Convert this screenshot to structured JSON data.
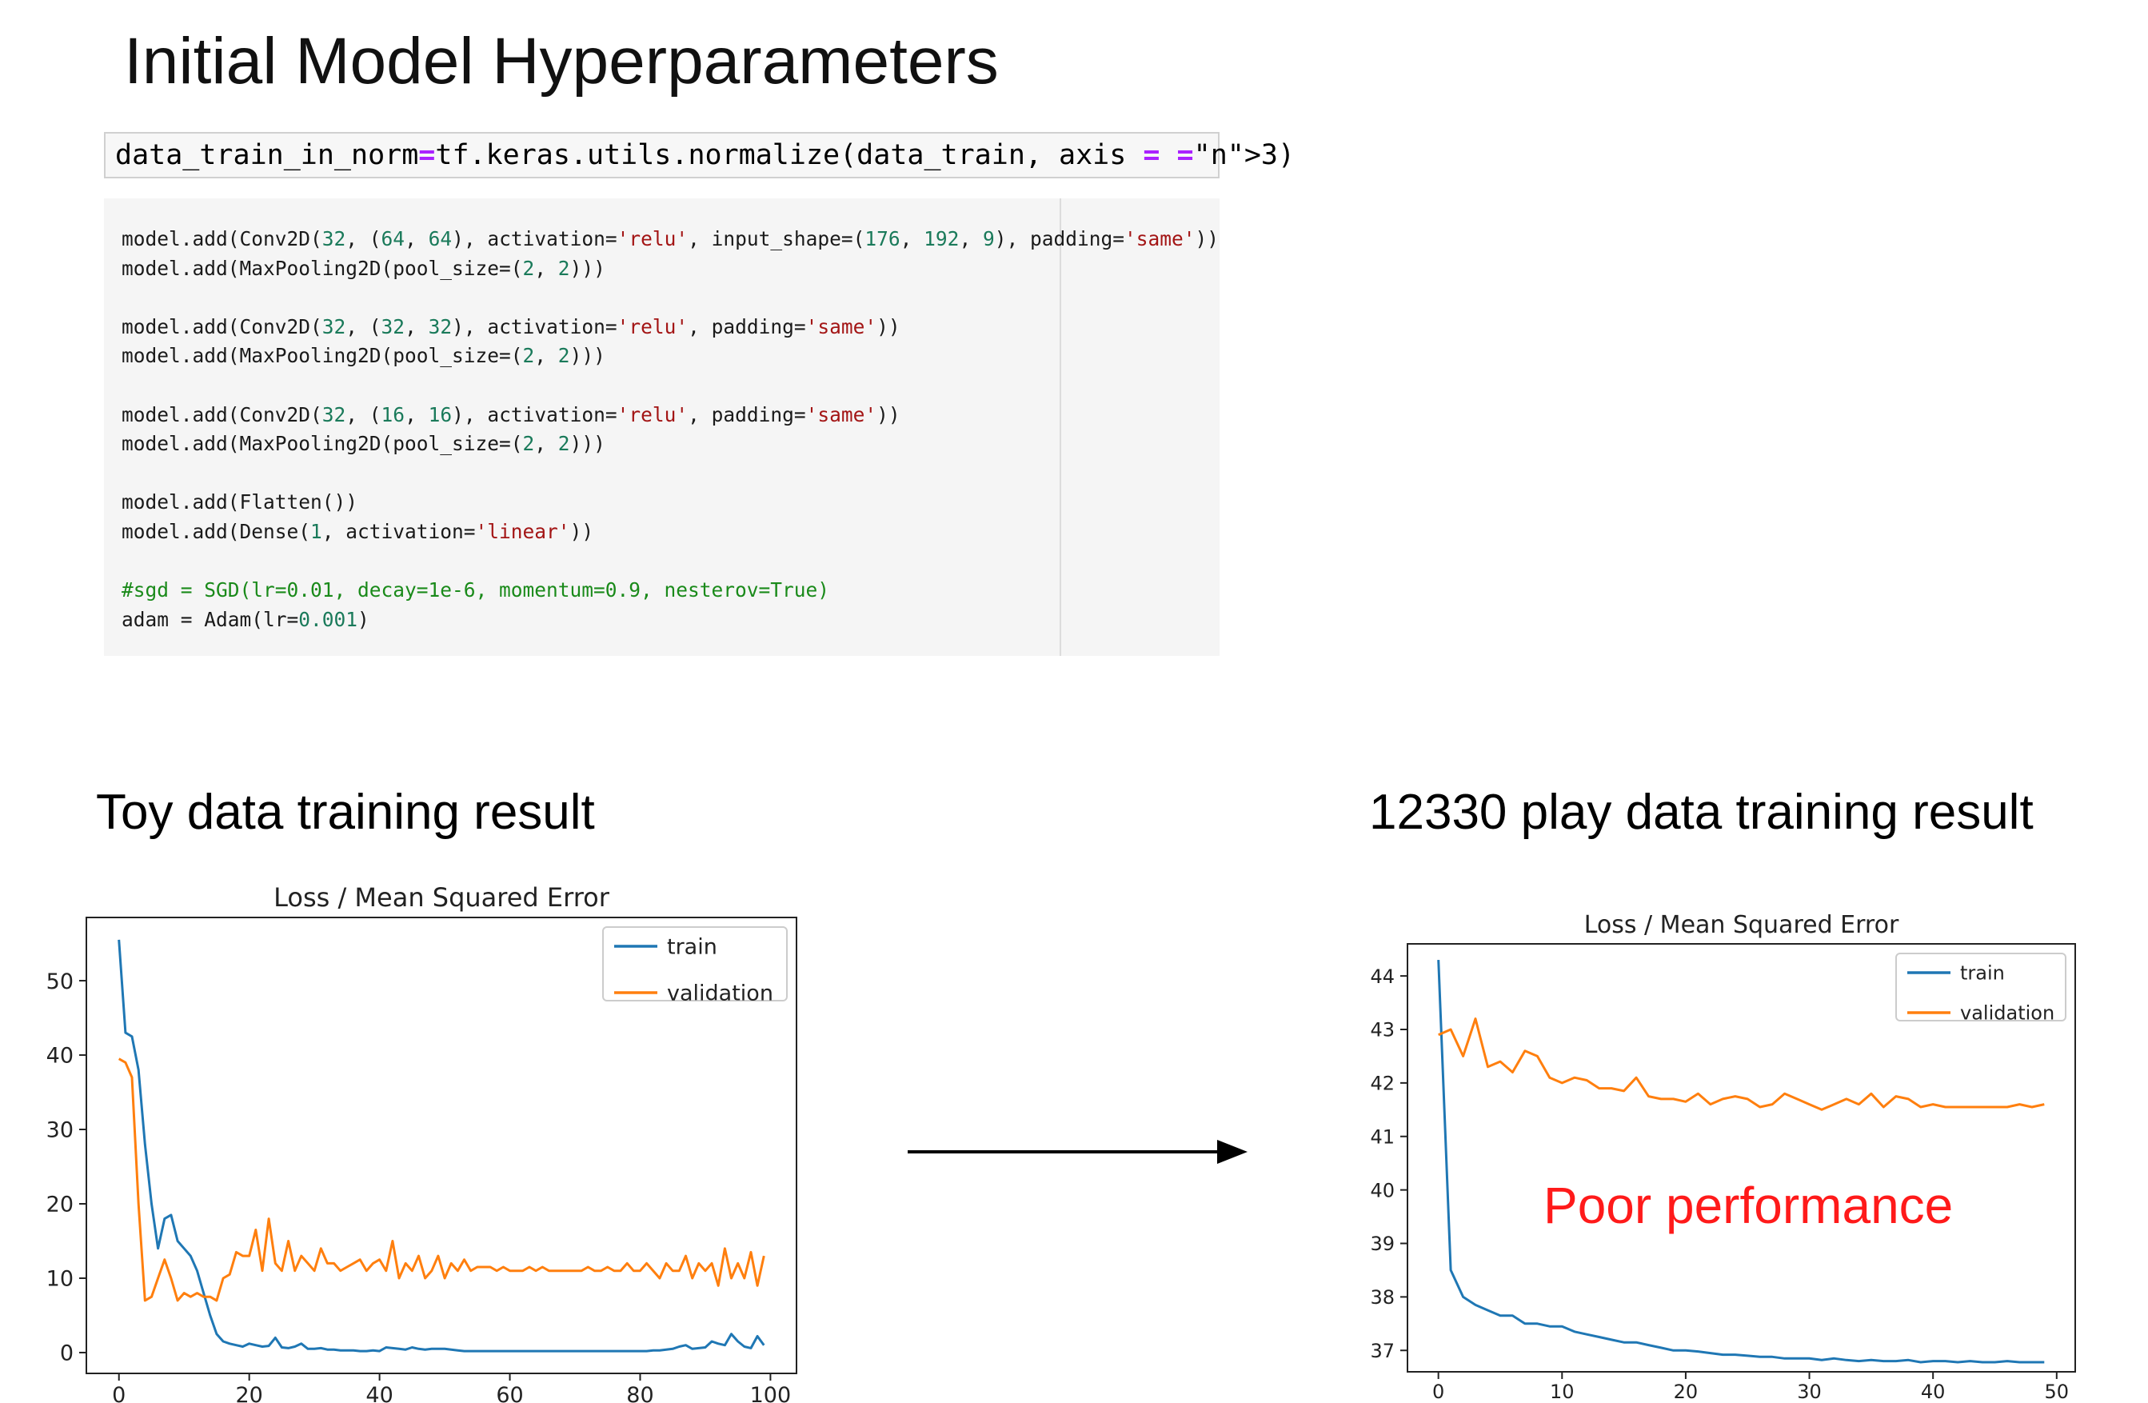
{
  "slide": {
    "title": "Initial Model Hyperparameters",
    "left_title": "Toy data training result",
    "right_title": "12330 play data training result",
    "annotation": "Poor performance",
    "annotation_color": "#ff1a1a"
  },
  "code": {
    "input_line": "data_train_in_norm=tf.keras.utils.normalize(data_train, axis = 3)",
    "output_lines": [
      "model.add(Conv2D(32, (64, 64), activation='relu', input_shape=(176, 192, 9), padding='same'))",
      "model.add(MaxPooling2D(pool_size=(2, 2)))",
      "",
      "model.add(Conv2D(32, (32, 32), activation='relu', padding='same'))",
      "model.add(MaxPooling2D(pool_size=(2, 2)))",
      "",
      "model.add(Conv2D(32, (16, 16), activation='relu', padding='same'))",
      "model.add(MaxPooling2D(pool_size=(2, 2)))",
      "",
      "model.add(Flatten())",
      "model.add(Dense(1, activation='linear'))",
      "",
      "#sgd = SGD(lr=0.01, decay=1e-6, momentum=0.9, nesterov=True)",
      "adam = Adam(lr=0.001)"
    ]
  },
  "chart_data": [
    {
      "type": "line",
      "title": "Loss / Mean Squared Error",
      "xlim": [
        -5,
        104
      ],
      "ylim": [
        -2.8,
        58.5
      ],
      "xticks": [
        0,
        20,
        40,
        60,
        80,
        100
      ],
      "yticks": [
        0,
        10,
        20,
        30,
        40,
        50
      ],
      "legend": "top-right",
      "grid": false,
      "series": [
        {
          "name": "train",
          "color": "#1f77b4",
          "x": [
            0,
            1,
            2,
            3,
            4,
            5,
            6,
            7,
            8,
            9,
            10,
            11,
            12,
            13,
            14,
            15,
            16,
            17,
            18,
            19,
            20,
            21,
            22,
            23,
            24,
            25,
            26,
            27,
            28,
            29,
            30,
            31,
            32,
            33,
            34,
            35,
            36,
            37,
            38,
            39,
            40,
            41,
            42,
            43,
            44,
            45,
            46,
            47,
            48,
            49,
            50,
            51,
            52,
            53,
            54,
            55,
            56,
            57,
            58,
            59,
            60,
            61,
            62,
            63,
            64,
            65,
            66,
            67,
            68,
            69,
            70,
            71,
            72,
            73,
            74,
            75,
            76,
            77,
            78,
            79,
            80,
            81,
            82,
            83,
            84,
            85,
            86,
            87,
            88,
            89,
            90,
            91,
            92,
            93,
            94,
            95,
            96,
            97,
            98,
            99
          ],
          "y": [
            55.5,
            43,
            42.5,
            38,
            28,
            20,
            14,
            18,
            18.5,
            15,
            14,
            13,
            11,
            8,
            5,
            2.5,
            1.5,
            1.2,
            1.0,
            0.8,
            1.2,
            1.0,
            0.8,
            0.9,
            2.0,
            0.7,
            0.6,
            0.8,
            1.2,
            0.5,
            0.5,
            0.6,
            0.4,
            0.4,
            0.3,
            0.3,
            0.3,
            0.2,
            0.2,
            0.3,
            0.2,
            0.7,
            0.6,
            0.5,
            0.4,
            0.7,
            0.5,
            0.4,
            0.5,
            0.5,
            0.5,
            0.4,
            0.3,
            0.2,
            0.2,
            0.2,
            0.2,
            0.2,
            0.2,
            0.2,
            0.2,
            0.2,
            0.2,
            0.2,
            0.2,
            0.2,
            0.2,
            0.2,
            0.2,
            0.2,
            0.2,
            0.2,
            0.2,
            0.2,
            0.2,
            0.2,
            0.2,
            0.2,
            0.2,
            0.2,
            0.2,
            0.2,
            0.3,
            0.3,
            0.4,
            0.5,
            0.8,
            1.0,
            0.5,
            0.6,
            0.7,
            1.5,
            1.2,
            1.0,
            2.5,
            1.5,
            0.8,
            0.6,
            2.2,
            1.0
          ]
        },
        {
          "name": "validation",
          "color": "#ff7f0e",
          "x": [
            0,
            1,
            2,
            3,
            4,
            5,
            6,
            7,
            8,
            9,
            10,
            11,
            12,
            13,
            14,
            15,
            16,
            17,
            18,
            19,
            20,
            21,
            22,
            23,
            24,
            25,
            26,
            27,
            28,
            29,
            30,
            31,
            32,
            33,
            34,
            35,
            36,
            37,
            38,
            39,
            40,
            41,
            42,
            43,
            44,
            45,
            46,
            47,
            48,
            49,
            50,
            51,
            52,
            53,
            54,
            55,
            56,
            57,
            58,
            59,
            60,
            61,
            62,
            63,
            64,
            65,
            66,
            67,
            68,
            69,
            70,
            71,
            72,
            73,
            74,
            75,
            76,
            77,
            78,
            79,
            80,
            81,
            82,
            83,
            84,
            85,
            86,
            87,
            88,
            89,
            90,
            91,
            92,
            93,
            94,
            95,
            96,
            97,
            98,
            99
          ],
          "y": [
            39.5,
            39,
            37,
            20,
            7,
            7.5,
            10,
            12.5,
            10,
            7,
            8,
            7.5,
            8,
            7.5,
            7.5,
            7,
            10,
            10.5,
            13.5,
            13,
            13,
            16.5,
            11,
            18,
            12,
            11,
            15,
            11,
            13,
            12,
            11,
            14,
            12,
            12,
            11,
            11.5,
            12,
            12.5,
            11,
            12,
            12.5,
            11,
            15,
            10,
            12,
            11,
            13,
            10,
            11,
            13,
            10,
            12,
            11,
            12.5,
            11,
            11.5,
            11.5,
            11.5,
            11,
            11.5,
            11,
            11,
            11,
            11.5,
            11,
            11.5,
            11,
            11,
            11,
            11,
            11,
            11,
            11.5,
            11,
            11,
            11.5,
            11,
            11,
            12,
            11,
            11,
            12,
            11,
            10,
            12,
            11,
            11,
            13,
            10,
            12,
            11,
            12,
            9,
            14,
            10,
            12,
            10,
            13.5,
            9,
            13
          ]
        }
      ]
    },
    {
      "type": "line",
      "title": "Loss / Mean Squared Error",
      "xlim": [
        -2.5,
        51.5
      ],
      "ylim": [
        36.6,
        44.6
      ],
      "xticks": [
        0,
        10,
        20,
        30,
        40,
        50
      ],
      "yticks": [
        37,
        38,
        39,
        40,
        41,
        42,
        43,
        44
      ],
      "legend": "top-right",
      "grid": false,
      "series": [
        {
          "name": "train",
          "color": "#1f77b4",
          "x": [
            0,
            1,
            2,
            3,
            4,
            5,
            6,
            7,
            8,
            9,
            10,
            11,
            12,
            13,
            14,
            15,
            16,
            17,
            18,
            19,
            20,
            21,
            22,
            23,
            24,
            25,
            26,
            27,
            28,
            29,
            30,
            31,
            32,
            33,
            34,
            35,
            36,
            37,
            38,
            39,
            40,
            41,
            42,
            43,
            44,
            45,
            46,
            47,
            48,
            49
          ],
          "y": [
            44.3,
            38.5,
            38.0,
            37.85,
            37.75,
            37.65,
            37.65,
            37.5,
            37.5,
            37.45,
            37.45,
            37.35,
            37.3,
            37.25,
            37.2,
            37.15,
            37.15,
            37.1,
            37.05,
            37.0,
            37.0,
            36.98,
            36.95,
            36.92,
            36.92,
            36.9,
            36.88,
            36.88,
            36.85,
            36.85,
            36.85,
            36.82,
            36.85,
            36.82,
            36.8,
            36.82,
            36.8,
            36.8,
            36.82,
            36.78,
            36.8,
            36.8,
            36.78,
            36.8,
            36.78,
            36.78,
            36.8,
            36.78,
            36.78,
            36.78
          ]
        },
        {
          "name": "validation",
          "color": "#ff7f0e",
          "x": [
            0,
            1,
            2,
            3,
            4,
            5,
            6,
            7,
            8,
            9,
            10,
            11,
            12,
            13,
            14,
            15,
            16,
            17,
            18,
            19,
            20,
            21,
            22,
            23,
            24,
            25,
            26,
            27,
            28,
            29,
            30,
            31,
            32,
            33,
            34,
            35,
            36,
            37,
            38,
            39,
            40,
            41,
            42,
            43,
            44,
            45,
            46,
            47,
            48,
            49
          ],
          "y": [
            42.9,
            43.0,
            42.5,
            43.2,
            42.3,
            42.4,
            42.2,
            42.6,
            42.5,
            42.1,
            42.0,
            42.1,
            42.05,
            41.9,
            41.9,
            41.85,
            42.1,
            41.75,
            41.7,
            41.7,
            41.65,
            41.8,
            41.6,
            41.7,
            41.75,
            41.7,
            41.55,
            41.6,
            41.8,
            41.7,
            41.6,
            41.5,
            41.6,
            41.7,
            41.6,
            41.8,
            41.55,
            41.75,
            41.7,
            41.55,
            41.6,
            41.55,
            41.55,
            41.55,
            41.55,
            41.55,
            41.55,
            41.6,
            41.55,
            41.6
          ]
        }
      ]
    }
  ]
}
